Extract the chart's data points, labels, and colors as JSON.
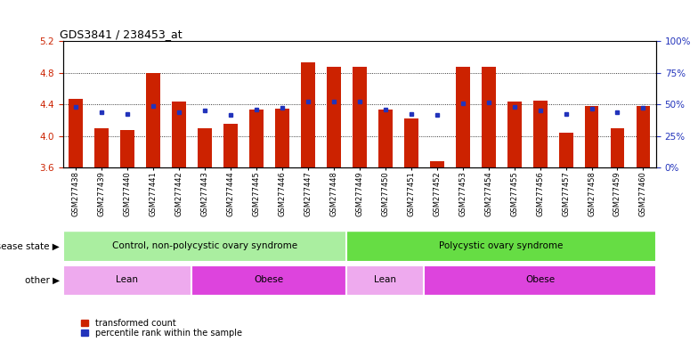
{
  "title": "GDS3841 / 238453_at",
  "samples": [
    "GSM277438",
    "GSM277439",
    "GSM277440",
    "GSM277441",
    "GSM277442",
    "GSM277443",
    "GSM277444",
    "GSM277445",
    "GSM277446",
    "GSM277447",
    "GSM277448",
    "GSM277449",
    "GSM277450",
    "GSM277451",
    "GSM277452",
    "GSM277453",
    "GSM277454",
    "GSM277455",
    "GSM277456",
    "GSM277457",
    "GSM277458",
    "GSM277459",
    "GSM277460"
  ],
  "bar_values": [
    4.47,
    4.1,
    4.08,
    4.8,
    4.43,
    4.1,
    4.15,
    4.33,
    4.35,
    4.93,
    4.87,
    4.87,
    4.33,
    4.22,
    3.68,
    4.87,
    4.87,
    4.43,
    4.45,
    4.04,
    4.38,
    4.1,
    4.38
  ],
  "blue_values": [
    4.37,
    4.3,
    4.28,
    4.38,
    4.3,
    4.32,
    4.27,
    4.33,
    4.36,
    4.44,
    4.43,
    4.44,
    4.33,
    4.28,
    4.27,
    4.41,
    4.42,
    4.37,
    4.32,
    4.28,
    4.34,
    4.3,
    4.36
  ],
  "ymin": 3.6,
  "ymax": 5.2,
  "yticks": [
    3.6,
    4.0,
    4.4,
    4.8,
    5.2
  ],
  "right_yticks": [
    0,
    25,
    50,
    75,
    100
  ],
  "bar_color": "#cc2200",
  "blue_color": "#2233bb",
  "disease_state_groups": [
    {
      "label": "Control, non-polycystic ovary syndrome",
      "start": 0,
      "end": 11,
      "color": "#aaeea0"
    },
    {
      "label": "Polycystic ovary syndrome",
      "start": 11,
      "end": 23,
      "color": "#66dd44"
    }
  ],
  "other_groups": [
    {
      "label": "Lean",
      "start": 0,
      "end": 5,
      "color": "#eeaaee"
    },
    {
      "label": "Obese",
      "start": 5,
      "end": 11,
      "color": "#dd44dd"
    },
    {
      "label": "Lean",
      "start": 11,
      "end": 14,
      "color": "#eeaaee"
    },
    {
      "label": "Obese",
      "start": 14,
      "end": 23,
      "color": "#dd44dd"
    }
  ],
  "bg_color": "#ffffff",
  "disease_state_label": "disease state",
  "other_label": "other"
}
